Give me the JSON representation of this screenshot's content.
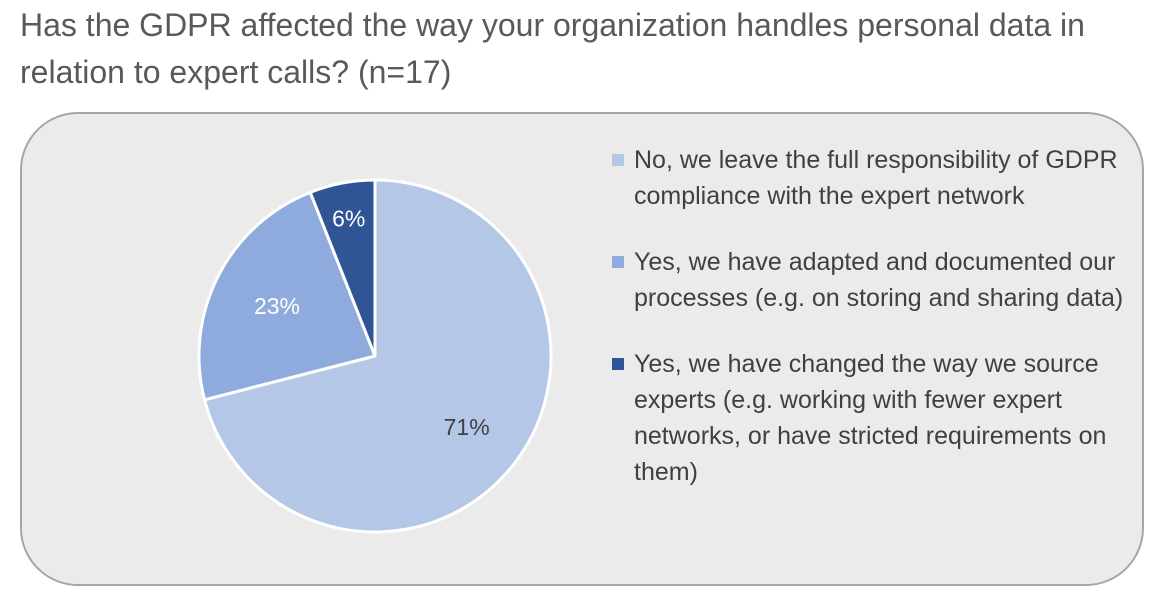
{
  "title": "Has the GDPR affected the way your organization handles personal data in relation to expert calls? (n=17)",
  "chart_data": {
    "type": "pie",
    "title": "Has the GDPR affected the way your organization handles personal data in relation to expert calls? (n=17)",
    "slices": [
      {
        "label": "No, we leave the full responsibility of GDPR compliance with the expert network",
        "value": 71,
        "value_label": "71%",
        "color": "#b4c7e7",
        "label_color": "#404040"
      },
      {
        "label": "Yes, we have adapted and documented our processes (e.g. on storing and sharing data)",
        "value": 23,
        "value_label": "23%",
        "color": "#8faadc",
        "label_color": "#ffffff"
      },
      {
        "label": "Yes, we have changed the way we source experts (e.g. working with fewer expert networks, or have stricted requirements on them)",
        "value": 6,
        "value_label": "6%",
        "color": "#2f5597",
        "label_color": "#ffffff"
      }
    ],
    "legend_position": "right"
  }
}
